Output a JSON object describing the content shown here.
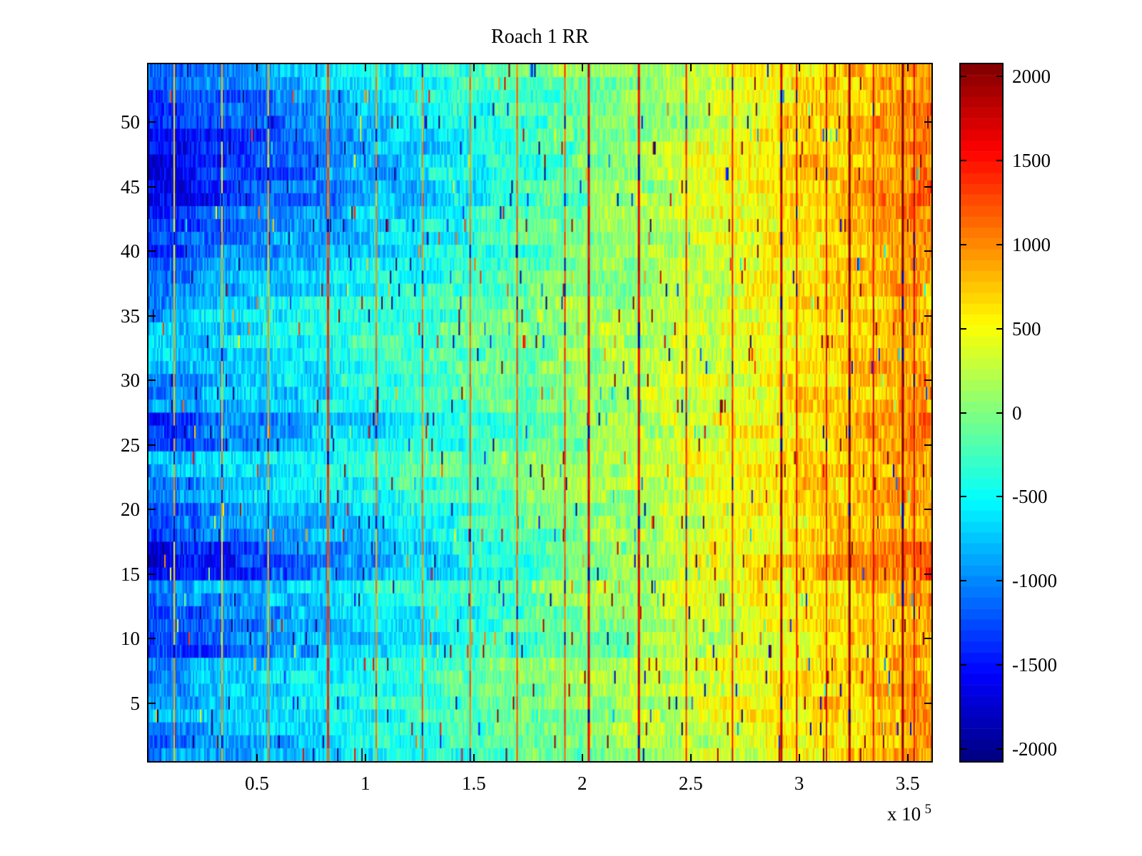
{
  "window": {
    "background": "#ffffff"
  },
  "chart_data": {
    "type": "heatmap",
    "title": "Roach 1 RR",
    "colormap": "jet",
    "colormap_levels": 64,
    "x_axis": {
      "tick_values": [
        0.5,
        1,
        1.5,
        2,
        2.5,
        3,
        3.5
      ],
      "tick_labels": [
        "0.5",
        "1",
        "1.5",
        "2",
        "2.5",
        "3",
        "3.5"
      ],
      "range": [
        0,
        3.61
      ],
      "unit_scale": 100000,
      "scale_factor_label": {
        "prefix": "x 10",
        "exponent": "5"
      }
    },
    "y_axis": {
      "tick_values": [
        5,
        10,
        15,
        20,
        25,
        30,
        35,
        40,
        45,
        50
      ],
      "tick_labels": [
        "5",
        "10",
        "15",
        "20",
        "25",
        "30",
        "35",
        "40",
        "45",
        "50"
      ],
      "range": [
        0.5,
        54.5
      ],
      "rows": 54
    },
    "colorbar": {
      "tick_values": [
        2000,
        1500,
        1000,
        500,
        0,
        -500,
        -1000,
        -1500,
        -2000
      ],
      "tick_labels": [
        "2000",
        "1500",
        "1000",
        "500",
        "0",
        "-500",
        "-1000",
        "-1500",
        "-2000"
      ],
      "color_axis_range": [
        -2070,
        2070
      ],
      "position": "right"
    },
    "heatmap_model": {
      "description": "54 trial rows; values ramp from strongly negative (blue) at left to strongly positive (orange/red) at right with heavy per-beat noise and periodic dark-red artifact columns",
      "seed": 42,
      "columns": 548,
      "base_ramp": [
        -1150,
        1000
      ],
      "row_gains": [
        0.9,
        0.9,
        0.85,
        0.85,
        0.85,
        0.85,
        0.85,
        0.85,
        1.05,
        1.05,
        1.0,
        1.0,
        0.95,
        0.85,
        1.35,
        1.4,
        1.3,
        1.1,
        1.0,
        1.0,
        0.9,
        0.9,
        0.85,
        0.8,
        1.05,
        1.05,
        1.15,
        0.9,
        0.9,
        0.85,
        0.85,
        0.75,
        0.75,
        0.75,
        0.78,
        0.78,
        0.95,
        0.95,
        1.0,
        1.05,
        1.05,
        1.1,
        1.1,
        1.3,
        1.3,
        1.3,
        1.3,
        1.3,
        1.25,
        1.25,
        1.15,
        1.15,
        1.0,
        0.95
      ],
      "row_offsets": [
        -60,
        -60,
        0,
        30,
        30,
        50,
        50,
        50,
        -160,
        -160,
        -140,
        -140,
        -40,
        40,
        -130,
        -150,
        -120,
        -80,
        -60,
        -60,
        40,
        40,
        90,
        110,
        -40,
        -40,
        -60,
        30,
        30,
        40,
        40,
        60,
        60,
        60,
        40,
        40,
        -40,
        -40,
        -80,
        -90,
        -90,
        -100,
        -100,
        -160,
        -160,
        -160,
        -180,
        -180,
        -170,
        -170,
        -140,
        -140,
        -60,
        -30
      ],
      "noise": {
        "column_amplitude": 260,
        "block_amplitude": 170,
        "block_min_len": 8,
        "block_max_len": 24,
        "spike_probability": 0.02,
        "spike_min": 700,
        "spike_max": 2800
      },
      "marker_lines": [
        {
          "position": 0.032,
          "width": 2
        },
        {
          "position": 0.093,
          "width": 2
        },
        {
          "position": 0.152,
          "width": 2
        },
        {
          "position": 0.228,
          "width": 3
        },
        {
          "position": 0.29,
          "width": 2
        },
        {
          "position": 0.349,
          "width": 2
        },
        {
          "position": 0.41,
          "width": 2
        },
        {
          "position": 0.47,
          "width": 2
        },
        {
          "position": 0.531,
          "width": 2
        },
        {
          "position": 0.561,
          "width": 3
        },
        {
          "position": 0.625,
          "width": 3
        },
        {
          "position": 0.686,
          "width": 2
        },
        {
          "position": 0.745,
          "width": 2
        },
        {
          "position": 0.807,
          "width": 3
        },
        {
          "position": 0.827,
          "width": 2
        },
        {
          "position": 0.865,
          "width": 2
        },
        {
          "position": 0.894,
          "width": 3
        },
        {
          "position": 0.925,
          "width": 2
        },
        {
          "position": 0.962,
          "width": 3
        },
        {
          "position": 0.977,
          "width": 2
        }
      ],
      "marker_value": {
        "base": 1250,
        "local_weight": 0.45,
        "jitter": 400,
        "dark_probability": 0.07,
        "dark_value": -1900
      }
    }
  }
}
